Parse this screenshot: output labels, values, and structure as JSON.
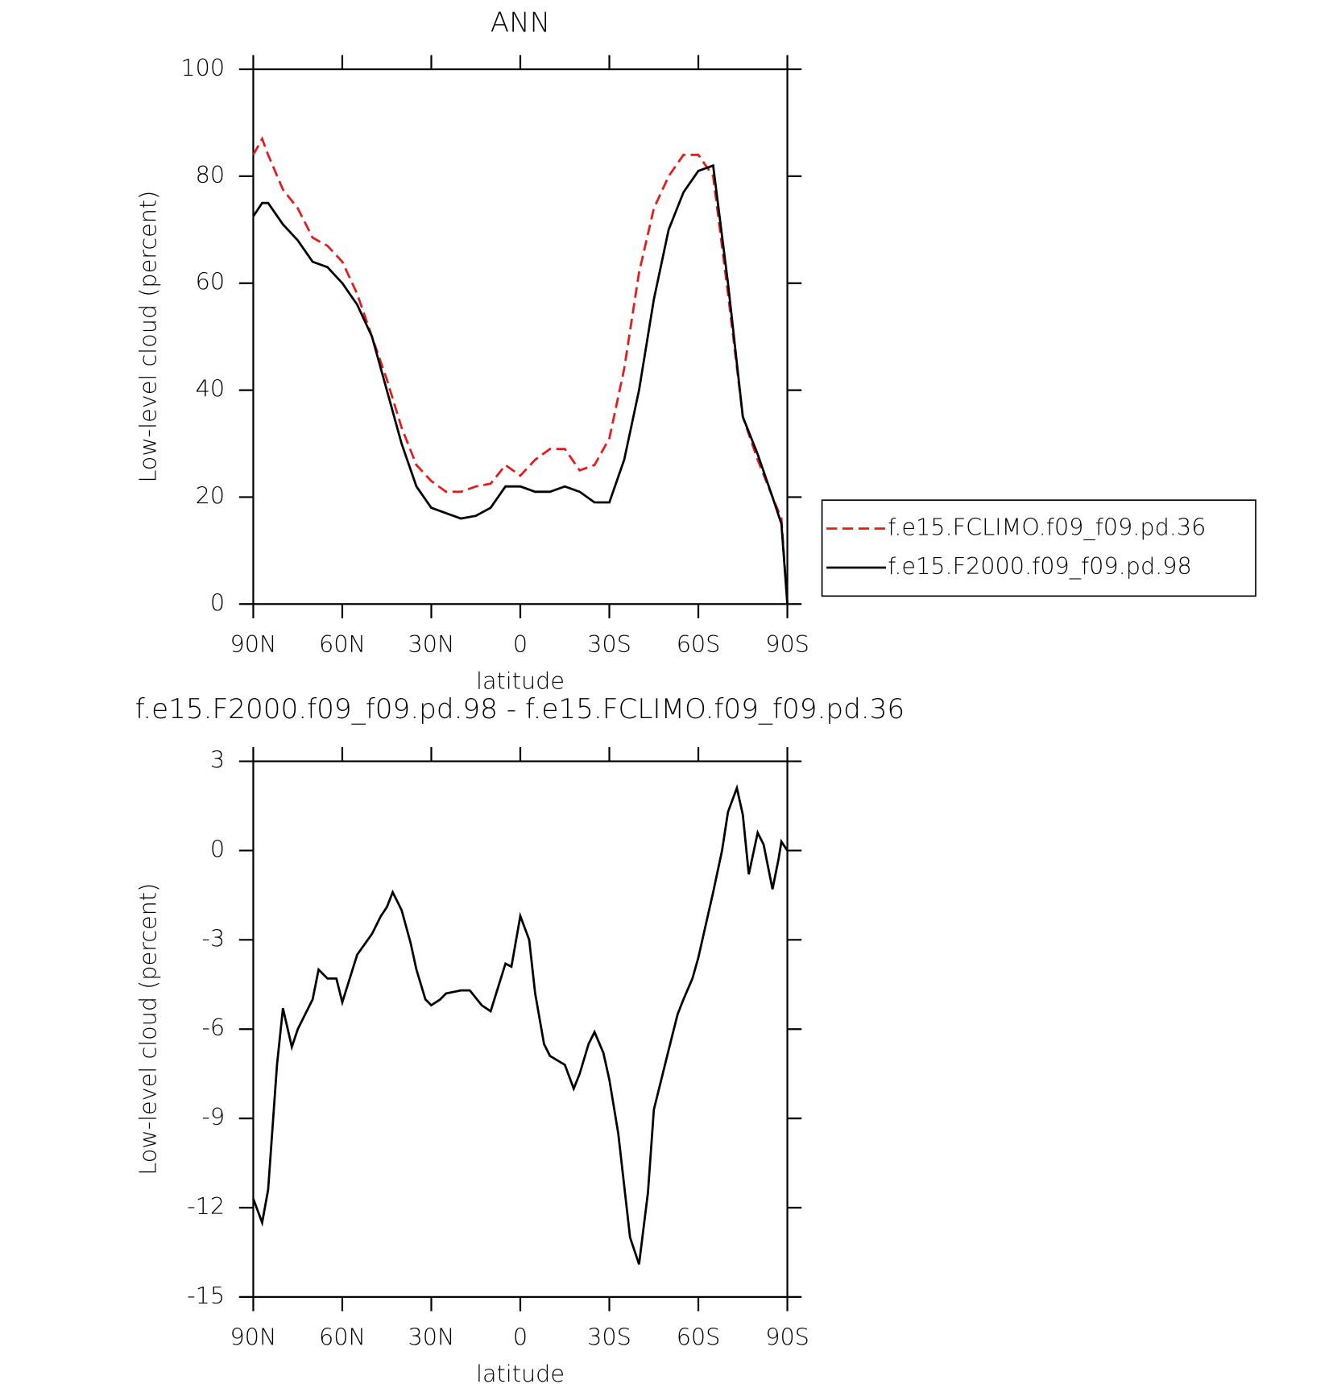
{
  "chart_data": [
    {
      "type": "line",
      "title": "ANN",
      "xlabel": "latitude",
      "ylabel": "Low-level cloud (percent)",
      "x": [
        90,
        87,
        85,
        80,
        75,
        70,
        65,
        60,
        55,
        50,
        45,
        40,
        35,
        30,
        25,
        20,
        15,
        10,
        5,
        0,
        -5,
        -10,
        -15,
        -20,
        -25,
        -30,
        -35,
        -40,
        -45,
        -50,
        -55,
        -60,
        -65,
        -70,
        -75,
        -80,
        -85,
        -88,
        -90
      ],
      "series": [
        {
          "name": "f.e15.FCLIMO.f09_f09.pd.36",
          "color": "#e41a1c",
          "dashed": true,
          "values": [
            84,
            87,
            84,
            77.5,
            74,
            68.5,
            67,
            64,
            58,
            50,
            42,
            33,
            26,
            23,
            21,
            21,
            22,
            22.5,
            26,
            24,
            27,
            29,
            29,
            25,
            26,
            31,
            44,
            62,
            74,
            80,
            84,
            84,
            80,
            58,
            35,
            27,
            20,
            16,
            0
          ]
        },
        {
          "name": "f.e15.F2000.f09_f09.pd.98",
          "color": "#000000",
          "dashed": false,
          "values": [
            72.5,
            75,
            75,
            71,
            68,
            64,
            63,
            60,
            56,
            50,
            40,
            30,
            22,
            18,
            17,
            16,
            16.5,
            18,
            22,
            22,
            21,
            21,
            22,
            21,
            19,
            19,
            27,
            40,
            57,
            70,
            77,
            81,
            82,
            60,
            35,
            28,
            20,
            15,
            0
          ]
        }
      ],
      "xlim": [
        90,
        -90
      ],
      "xticks": [
        {
          "value": 90,
          "label": "90N"
        },
        {
          "value": 60,
          "label": "60N"
        },
        {
          "value": 30,
          "label": "30N"
        },
        0,
        {
          "value": -30,
          "label": "30S"
        },
        {
          "value": -60,
          "label": "60S"
        },
        {
          "value": -90,
          "label": "90S"
        }
      ],
      "ylim": [
        0,
        100
      ],
      "yticks": [
        0,
        20,
        40,
        60,
        80,
        100
      ]
    },
    {
      "type": "line",
      "title": "f.e15.F2000.f09_f09.pd.98 - f.e15.FCLIMO.f09_f09.pd.36",
      "xlabel": "latitude",
      "ylabel": "Low-level cloud (percent)",
      "x": [
        90,
        87,
        85,
        82,
        80,
        77,
        75,
        70,
        68,
        65,
        62,
        60,
        55,
        50,
        47,
        45,
        43,
        40,
        37,
        35,
        32,
        30,
        27,
        25,
        20,
        17,
        13,
        10,
        5,
        3,
        0,
        -3,
        -5,
        -8,
        -10,
        -15,
        -18,
        -20,
        -23,
        -25,
        -28,
        -30,
        -33,
        -37,
        -40,
        -43,
        -45,
        -50,
        -53,
        -55,
        -58,
        -60,
        -65,
        -68,
        -70,
        -73,
        -75,
        -77,
        -80,
        -82,
        -85,
        -87,
        -88,
        -90
      ],
      "color": "#000000",
      "values": [
        -11.7,
        -12.5,
        -11.4,
        -7.2,
        -5.3,
        -6.6,
        -6,
        -5,
        -4,
        -4.3,
        -4.3,
        -5.1,
        -3.5,
        -2.8,
        -2.2,
        -1.9,
        -1.4,
        -2,
        -3.1,
        -4,
        -5,
        -5.2,
        -5,
        -4.8,
        -4.7,
        -4.7,
        -5.2,
        -5.4,
        -3.8,
        -3.9,
        -2.2,
        -3,
        -4.8,
        -6.5,
        -6.9,
        -7.2,
        -8,
        -7.5,
        -6.5,
        -6.1,
        -6.8,
        -7.7,
        -9.5,
        -13,
        -13.9,
        -11.5,
        -8.7,
        -6.7,
        -5.5,
        -5,
        -4.3,
        -3.6,
        -1.4,
        0,
        1.3,
        2.1,
        1.2,
        -0.8,
        0.6,
        0.2,
        -1.3,
        -0.3,
        0.3,
        0
      ],
      "xlim": [
        90,
        -90
      ],
      "xticks": [
        {
          "value": 90,
          "label": "90N"
        },
        {
          "value": 60,
          "label": "60N"
        },
        {
          "value": 30,
          "label": "30N"
        },
        0,
        {
          "value": -30,
          "label": "30S"
        },
        {
          "value": -60,
          "label": "60S"
        },
        {
          "value": -90,
          "label": "90S"
        }
      ],
      "ylim": [
        -15,
        3
      ],
      "yticks": [
        -15,
        -12,
        -9,
        -6,
        -3,
        0,
        3
      ]
    }
  ]
}
